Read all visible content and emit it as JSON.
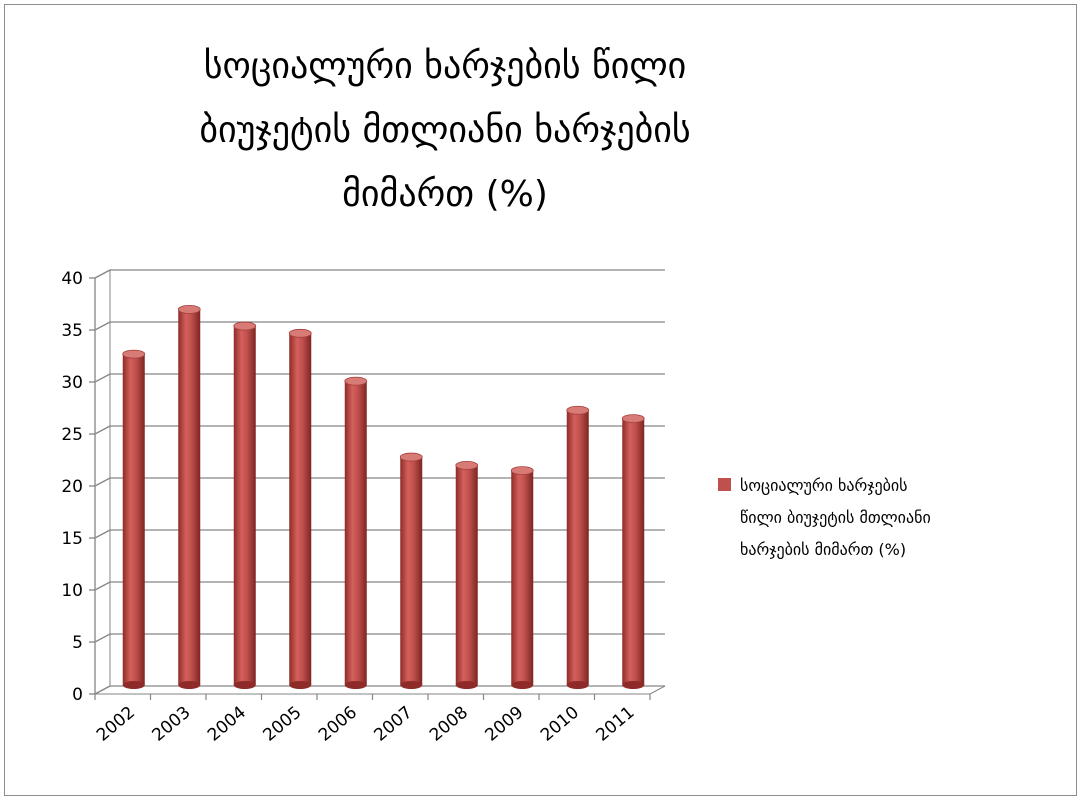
{
  "chart_data": {
    "type": "bar",
    "title_lines": [
      "სოციალური ხარჯების წილი",
      "ბიუჯეტის მთლიანი ხარჯების",
      "მიმართ (%)"
    ],
    "categories": [
      "2002",
      "2003",
      "2004",
      "2005",
      "2006",
      "2007",
      "2008",
      "2009",
      "2010",
      "2011"
    ],
    "series": [
      {
        "name_lines": [
          "სოციალური ხარჯების",
          "წილი ბიუჯეტის მთლიანი",
          "ხარჯების მიმართ (%)"
        ],
        "values": [
          32.2,
          36.5,
          34.9,
          34.2,
          29.6,
          22.3,
          21.5,
          21.0,
          26.8,
          26.0
        ],
        "color": "#c0504d"
      }
    ],
    "yticks": [
      "0",
      "5",
      "10",
      "15",
      "20",
      "25",
      "30",
      "35",
      "40"
    ],
    "ylim": [
      0,
      40
    ],
    "grid": true,
    "legend_position": "right",
    "style": "3d-cylinder"
  }
}
